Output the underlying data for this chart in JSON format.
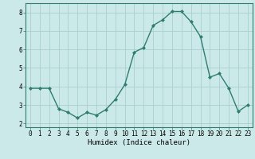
{
  "x": [
    0,
    1,
    2,
    3,
    4,
    5,
    6,
    7,
    8,
    9,
    10,
    11,
    12,
    13,
    14,
    15,
    16,
    17,
    18,
    19,
    20,
    21,
    22,
    23
  ],
  "y": [
    3.9,
    3.9,
    3.9,
    2.8,
    2.6,
    2.3,
    2.6,
    2.45,
    2.75,
    3.3,
    4.1,
    5.85,
    6.1,
    7.3,
    7.6,
    8.05,
    8.05,
    7.5,
    6.7,
    4.5,
    4.7,
    3.9,
    2.65,
    3.0
  ],
  "line_color": "#2e7d6e",
  "marker": "D",
  "marker_size": 2.0,
  "linewidth": 1.0,
  "bg_color": "#cce9e9",
  "grid_color": "#aacfcf",
  "xlabel": "Humidex (Indice chaleur)",
  "xlabel_fontsize": 6.5,
  "xlim": [
    -0.5,
    23.5
  ],
  "ylim": [
    1.8,
    8.5
  ],
  "yticks": [
    2,
    3,
    4,
    5,
    6,
    7,
    8
  ],
  "xticks": [
    0,
    1,
    2,
    3,
    4,
    5,
    6,
    7,
    8,
    9,
    10,
    11,
    12,
    13,
    14,
    15,
    16,
    17,
    18,
    19,
    20,
    21,
    22,
    23
  ],
  "tick_fontsize": 5.5,
  "axis_color": "#2e7d6e",
  "spine_color": "#2e7d6e"
}
